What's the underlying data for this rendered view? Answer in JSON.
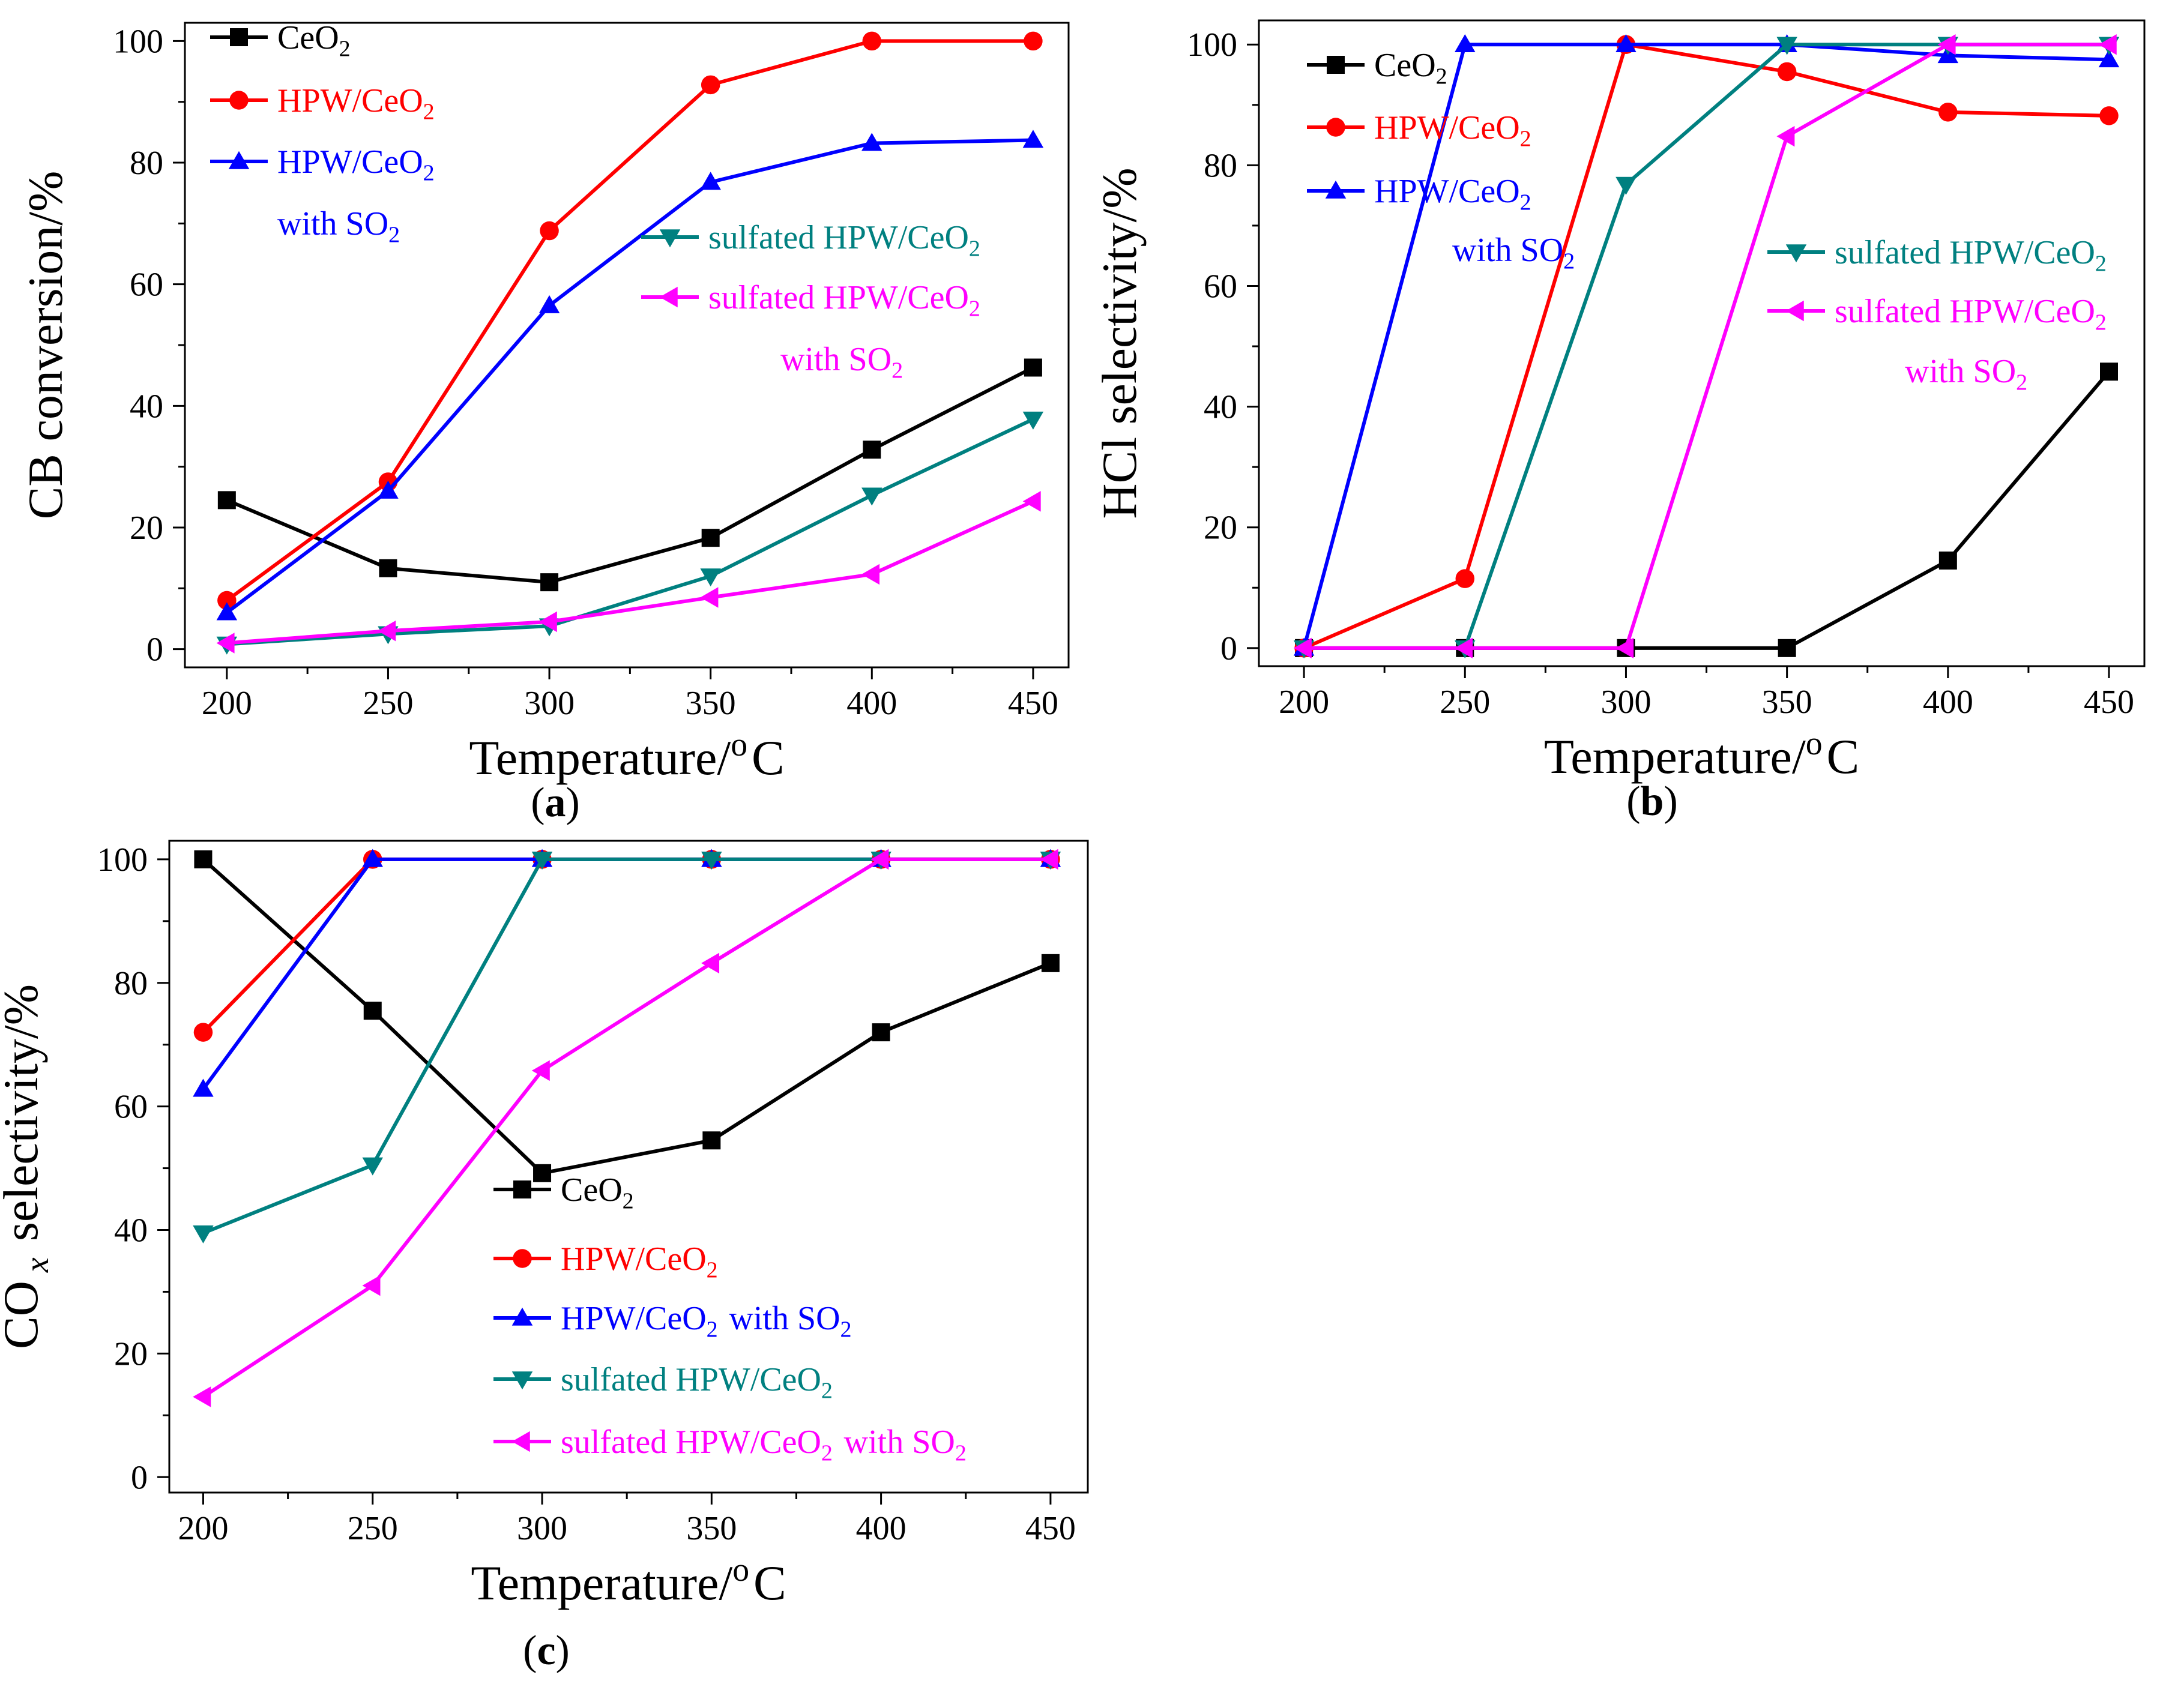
{
  "figure": {
    "panels": [
      {
        "id": "a",
        "caption_letter": "a"
      },
      {
        "id": "b",
        "caption_letter": "b"
      },
      {
        "id": "c",
        "caption_letter": "c"
      }
    ]
  },
  "series_styles": [
    {
      "key": "ceo2",
      "color": "#000000",
      "marker": "square"
    },
    {
      "key": "hpw",
      "color": "#ff0000",
      "marker": "circle"
    },
    {
      "key": "hpw_so2",
      "color": "#0000ff",
      "marker": "triangle-up"
    },
    {
      "key": "s_hpw",
      "color": "#008080",
      "marker": "triangle-down"
    },
    {
      "key": "s_hpw_so2",
      "color": "#ff00ff",
      "marker": "triangle-left"
    }
  ],
  "chart_data": [
    {
      "type": "line",
      "panel": "a",
      "xlabel": "Temperature/°C",
      "ylabel": "CB conversion/%",
      "x": [
        200,
        250,
        300,
        350,
        400,
        450
      ],
      "xlim": [
        187,
        461
      ],
      "ylim": [
        -3,
        103
      ],
      "xticks": [
        200,
        250,
        300,
        350,
        400,
        450
      ],
      "yticks": [
        0,
        20,
        40,
        60,
        80,
        100
      ],
      "grid": false,
      "legend_position": "top-left and right",
      "series": [
        {
          "name": "CeO₂",
          "key": "ceo2",
          "values": [
            24.5,
            13.3,
            11.0,
            18.3,
            32.8,
            46.3
          ]
        },
        {
          "name": "HPW/CeO₂",
          "key": "hpw",
          "values": [
            8.0,
            27.5,
            68.8,
            92.8,
            100.0,
            100.0
          ]
        },
        {
          "name": "HPW/CeO₂ with SO₂",
          "key": "hpw_so2",
          "values": [
            6.0,
            26.0,
            56.5,
            76.8,
            83.2,
            83.7
          ]
        },
        {
          "name": "sulfated HPW/CeO₂",
          "key": "s_hpw",
          "values": [
            0.8,
            2.5,
            3.8,
            12.0,
            25.3,
            37.8
          ]
        },
        {
          "name": "sulfated HPW/CeO₂ with SO₂",
          "key": "s_hpw_so2",
          "values": [
            1.0,
            3.0,
            4.5,
            8.5,
            12.3,
            24.3
          ]
        }
      ]
    },
    {
      "type": "line",
      "panel": "b",
      "xlabel": "Temperature/°C",
      "ylabel": "HCl selectivity/%",
      "x": [
        200,
        250,
        300,
        350,
        400,
        450
      ],
      "xlim": [
        186,
        461
      ],
      "ylim": [
        -3,
        104
      ],
      "xticks": [
        200,
        250,
        300,
        350,
        400,
        450
      ],
      "yticks": [
        0,
        20,
        40,
        60,
        80,
        100
      ],
      "grid": false,
      "legend_position": "top-left and right",
      "series": [
        {
          "name": "CeO₂",
          "key": "ceo2",
          "values": [
            0,
            0,
            0,
            0,
            14.5,
            45.8
          ]
        },
        {
          "name": "HPW/CeO₂",
          "key": "hpw",
          "values": [
            0,
            11.5,
            100.0,
            95.5,
            88.8,
            88.2
          ]
        },
        {
          "name": "HPW/CeO₂ with SO₂",
          "key": "hpw_so2",
          "values": [
            0,
            100.0,
            100.0,
            100.0,
            98.2,
            97.5
          ]
        },
        {
          "name": "sulfated HPW/CeO₂",
          "key": "s_hpw",
          "values": [
            0,
            0,
            76.8,
            100.0,
            100.0,
            100.0
          ]
        },
        {
          "name": "sulfated HPW/CeO₂ with SO₂",
          "key": "s_hpw_so2",
          "values": [
            0,
            0,
            0,
            84.8,
            100.0,
            100.0
          ]
        }
      ]
    },
    {
      "type": "line",
      "panel": "c",
      "xlabel": "Temperature/°C",
      "ylabel": "COx selectivity/%",
      "x": [
        200,
        250,
        300,
        350,
        400,
        450
      ],
      "xlim": [
        190,
        461
      ],
      "ylim": [
        -2.5,
        103
      ],
      "xticks": [
        200,
        250,
        300,
        350,
        400,
        450
      ],
      "yticks": [
        0,
        20,
        40,
        60,
        80,
        100
      ],
      "grid": false,
      "legend_position": "bottom-center",
      "series": [
        {
          "name": "CeO₂",
          "key": "ceo2",
          "values": [
            100.0,
            75.5,
            49.2,
            54.5,
            72.0,
            83.2
          ]
        },
        {
          "name": "HPW/CeO₂",
          "key": "hpw",
          "values": [
            72.0,
            100.0,
            100.0,
            100.0,
            100.0,
            100.0
          ]
        },
        {
          "name": "HPW/CeO₂ with SO₂",
          "key": "hpw_so2",
          "values": [
            62.8,
            100.0,
            100.0,
            100.0,
            100.0,
            100.0
          ]
        },
        {
          "name": "sulfated HPW/CeO₂",
          "key": "s_hpw",
          "values": [
            39.5,
            50.5,
            100.0,
            100.0,
            100.0,
            100.0
          ]
        },
        {
          "name": "sulfated HPW/CeO₂ with SO₂",
          "key": "s_hpw_so2",
          "values": [
            13.0,
            31.0,
            65.8,
            83.2,
            100.0,
            100.0
          ]
        }
      ]
    }
  ]
}
